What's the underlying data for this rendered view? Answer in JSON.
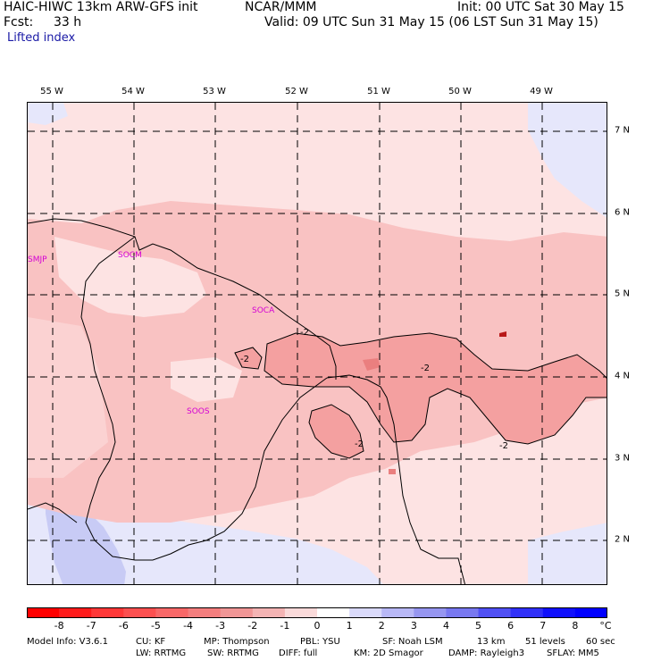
{
  "header": {
    "model_title": "HAIC-HIWC 13km ARW-GFS init",
    "org": "NCAR/MMM",
    "init": "Init: 00 UTC Sat 30 May 15",
    "fcst_label": "Fcst:",
    "fcst_value": "33 h",
    "valid": "Valid: 09 UTC Sun 31 May 15 (06 LST Sun 31 May 15)",
    "field": "Lifted index"
  },
  "map": {
    "longitude_labels": [
      "55 W",
      "54 W",
      "53 W",
      "52 W",
      "51 W",
      "50 W",
      "49 W"
    ],
    "latitude_labels": [
      "7 N",
      "6 N",
      "5 N",
      "4 N",
      "3 N",
      "2 N"
    ],
    "station_labels": [
      "SMJP",
      "SOCM",
      "SOCA",
      "SOOS"
    ],
    "contour_labels": [
      "-2",
      "-2",
      "-2",
      "-2",
      "-2"
    ],
    "colors": {
      "light_pink": "#fde3e3",
      "pink": "#f9c2c2",
      "medium_pink": "#f4a0a0",
      "dark_red_blob": "#b81818",
      "light_blue": "#dfe1fb",
      "blue": "#c7caf5",
      "station_text": "#d400d4"
    }
  },
  "colorbar": {
    "labels": [
      "-8",
      "-7",
      "-6",
      "-5",
      "-4",
      "-3",
      "-2",
      "-1",
      "0",
      "1",
      "2",
      "3",
      "4",
      "5",
      "6",
      "7",
      "8"
    ],
    "unit": "°C",
    "colors": [
      "#ff0000",
      "#ff1c1c",
      "#ff3838",
      "#fc5050",
      "#f86868",
      "#f47e7e",
      "#f09696",
      "#f4b4b4",
      "#fadada",
      "#ffffff",
      "#dadafa",
      "#b8b8f6",
      "#9696f0",
      "#7878f0",
      "#5050f4",
      "#3030f8",
      "#1010fc",
      "#0000ff"
    ]
  },
  "footer": {
    "line1": [
      "Model Info: V3.6.1",
      "CU: KF",
      "MP: Thompson",
      "PBL: YSU",
      "SF: Noah LSM",
      "13 km",
      "51 levels",
      "60 sec"
    ],
    "line2": [
      "LW: RRTMG",
      "SW: RRTMG",
      "DIFF: full",
      "KM: 2D Smagor",
      "DAMP: Rayleigh3",
      "SFLAY: MM5"
    ]
  }
}
